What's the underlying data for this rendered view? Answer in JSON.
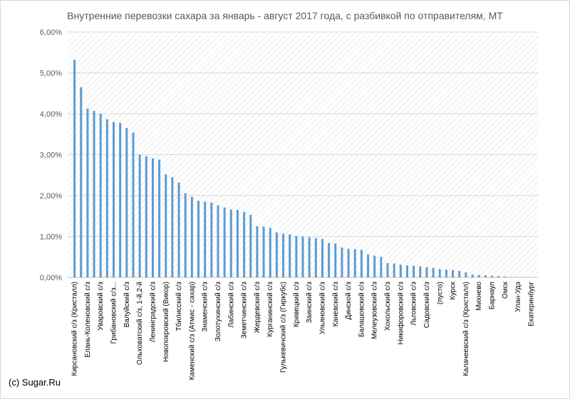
{
  "watermark": "(c) Sugar.Ru",
  "chart_data": {
    "type": "bar",
    "title": "Внутренние перевозки сахара за январь - август 2017 года, с разбивкой по отправителям, МТ",
    "xlabel": "",
    "ylabel": "",
    "ylim": [
      0,
      0.06
    ],
    "yticks": [
      "0,00%",
      "1,00%",
      "2,00%",
      "3,00%",
      "4,00%",
      "5,00%",
      "6,00%"
    ],
    "grid": true,
    "legend": "none",
    "bar_color": "#5b9bd5",
    "categories": [
      "Кирсановский с/з (Кристалл)",
      "",
      "Елань-Коленовский с/з",
      "",
      "Уваровский с/з",
      "",
      "Грибановский с/з...",
      "",
      "Валуйский с/з",
      "",
      "Ольховатский с/з, 1-й,2-й",
      "",
      "Ленинградский с/з",
      "",
      "Новопокровский (Викор)",
      "",
      "Тбилисский с/з",
      "",
      "Каменский с/з (Атмис - сахар)",
      "",
      "Знаменский с/з",
      "",
      "Золотухинский с/з",
      "",
      "Лабинский с/з",
      "",
      "Земетчинский с/з",
      "",
      "Жердевский с/з",
      "",
      "Курганинский с/з",
      "",
      "Гулькевичский с/з (Гиркубс)",
      "",
      "Кривецкий с/з",
      "",
      "Заинский с/з",
      "",
      "Ульяновский с/з",
      "",
      "Каневский с/з",
      "",
      "Динской с/з",
      "",
      "Балашовский с/з",
      "",
      "Мелеузовский с/з",
      "",
      "Хохольский с/з",
      "",
      "Никифоровский с/з",
      "",
      "Льговский с/з",
      "",
      "Садовский с/з",
      "",
      "(пусто)",
      "",
      "Курск",
      "",
      "Калачеевский с/з (Кристалл)",
      "",
      "Михнево",
      "",
      "Барнаул",
      "",
      "Омск",
      "",
      "Улан-Удэ",
      "",
      "Екатеринбург"
    ],
    "values": [
      0.0532,
      0.0465,
      0.0413,
      0.0407,
      0.04,
      0.0387,
      0.038,
      0.0378,
      0.0365,
      0.0354,
      0.03,
      0.0296,
      0.0291,
      0.0288,
      0.0252,
      0.0245,
      0.0232,
      0.0206,
      0.0197,
      0.0187,
      0.0185,
      0.0183,
      0.0176,
      0.0171,
      0.0166,
      0.0165,
      0.016,
      0.0153,
      0.0125,
      0.0124,
      0.0121,
      0.011,
      0.0107,
      0.0105,
      0.0101,
      0.01,
      0.0098,
      0.0096,
      0.0094,
      0.0084,
      0.0083,
      0.0073,
      0.007,
      0.0069,
      0.0067,
      0.0056,
      0.0053,
      0.005,
      0.0035,
      0.0034,
      0.0031,
      0.0029,
      0.0028,
      0.0027,
      0.0025,
      0.0023,
      0.002,
      0.0019,
      0.0018,
      0.0016,
      0.0012,
      0.0007,
      0.0006,
      0.0005,
      0.0004,
      0.0003,
      0.0002,
      0.0001,
      5e-05,
      2e-05,
      1e-05
    ]
  }
}
